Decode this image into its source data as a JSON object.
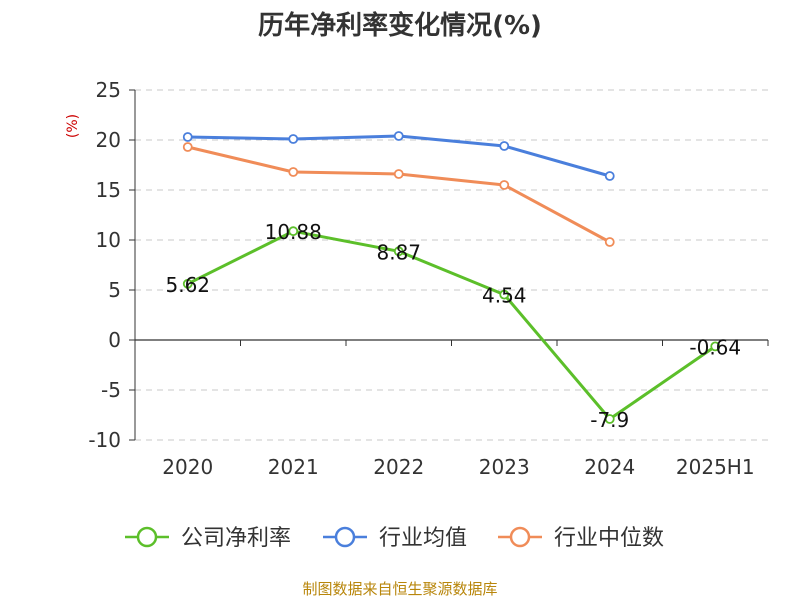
{
  "chart_data": {
    "type": "line",
    "title": "历年净利率变化情况(%)",
    "ylabel": "(%)",
    "categories": [
      "2020",
      "2021",
      "2022",
      "2023",
      "2024",
      "2025H1"
    ],
    "ylim": [
      -10,
      25
    ],
    "yticks": [
      25,
      20,
      15,
      10,
      5,
      0,
      -5,
      -10
    ],
    "grid": true,
    "legend_position": "bottom",
    "series": [
      {
        "name": "公司净利率",
        "color": "#5cbf2a",
        "values": [
          5.62,
          10.88,
          8.87,
          4.54,
          -7.9,
          -0.64
        ],
        "labels": [
          "5.62",
          "10.88",
          "8.87",
          "4.54",
          "-7.9",
          "-0.64"
        ]
      },
      {
        "name": "行业均值",
        "color": "#4a7fdc",
        "values": [
          20.3,
          20.1,
          20.4,
          19.4,
          16.4,
          null
        ]
      },
      {
        "name": "行业中位数",
        "color": "#f08c58",
        "values": [
          19.3,
          16.8,
          16.6,
          15.5,
          9.8,
          null
        ]
      }
    ]
  },
  "source": "制图数据来自恒生聚源数据库"
}
